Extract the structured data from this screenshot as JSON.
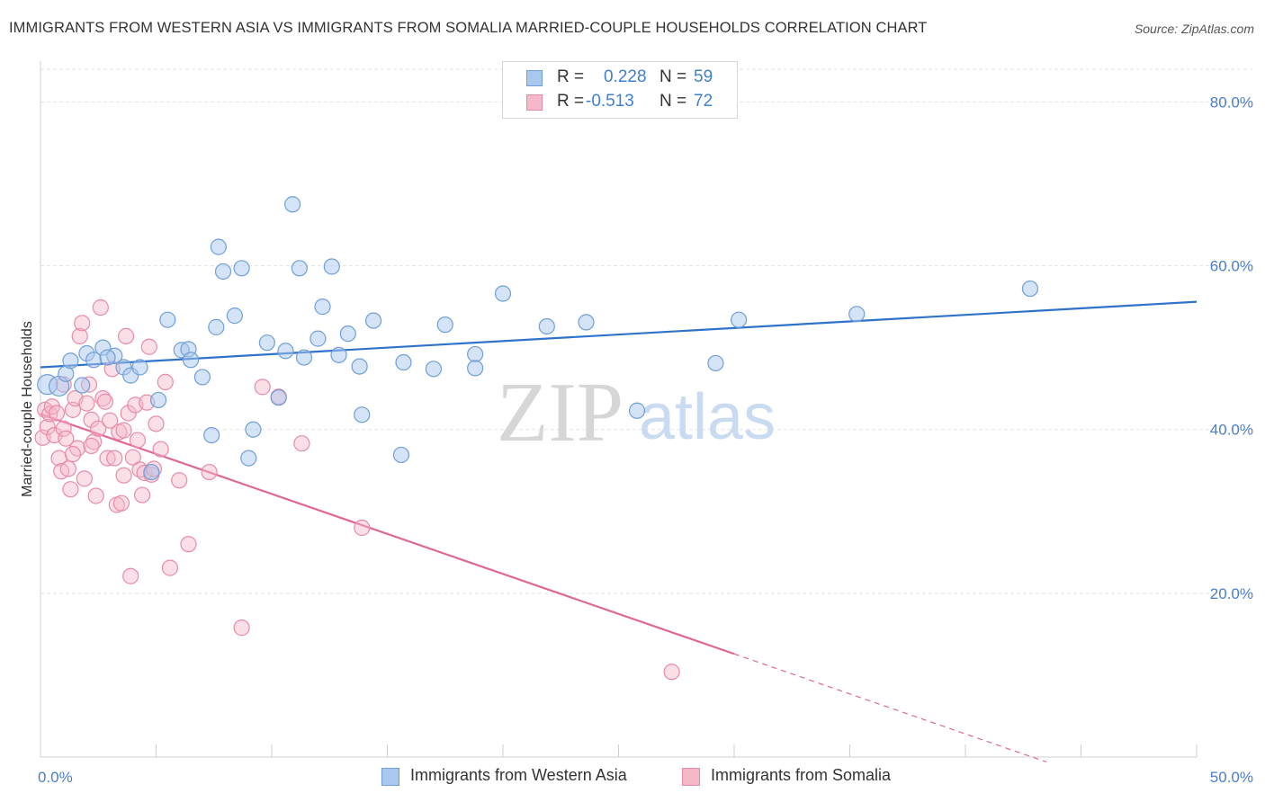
{
  "header": {
    "title": "IMMIGRANTS FROM WESTERN ASIA VS IMMIGRANTS FROM SOMALIA MARRIED-COUPLE HOUSEHOLDS CORRELATION CHART",
    "source": "Source: ZipAtlas.com"
  },
  "watermark": {
    "zip": "ZIP",
    "atlas": "atlas"
  },
  "legend": {
    "rows": [
      {
        "r_label": "R =",
        "r_value": "0.228",
        "n_label": "N =",
        "n_value": "59"
      },
      {
        "r_label": "R =",
        "r_value": "-0.513",
        "n_label": "N =",
        "n_value": "72"
      }
    ]
  },
  "bottom_legend": {
    "series1": "Immigrants from Western Asia",
    "series2": "Immigrants from Somalia"
  },
  "colors": {
    "blue_fill": "#aac8ee",
    "blue_stroke": "#6f9fd8",
    "blue_line": "#2f72c9",
    "pink_fill": "#f5b8c8",
    "pink_stroke": "#e98aa7",
    "pink_line": "#e06792",
    "grid": "#e3e3e3",
    "tick_text": "#4a7ec8"
  },
  "chart_data": {
    "type": "scatter",
    "title": "IMMIGRANTS FROM WESTERN ASIA VS IMMIGRANTS FROM SOMALIA MARRIED-COUPLE HOUSEHOLDS CORRELATION CHART",
    "xlabel": "",
    "ylabel": "Married-couple Households",
    "xlim": [
      0,
      50
    ],
    "ylim": [
      0,
      84
    ],
    "x_tick_labels": [
      "0.0%",
      "50.0%"
    ],
    "y_ticks": [
      20,
      40,
      60,
      80
    ],
    "y_tick_labels": [
      "20.0%",
      "40.0%",
      "60.0%",
      "80.0%"
    ],
    "grid": true,
    "legend_position": "top-center",
    "series": [
      {
        "name": "Immigrants from Western Asia",
        "color": "#aac8ee",
        "r": 0.228,
        "n": 59,
        "trend": {
          "x": [
            0,
            50
          ],
          "y": [
            47.6,
            55.6
          ]
        },
        "points": [
          [
            0.3,
            45.5
          ],
          [
            0.8,
            45.3
          ],
          [
            1.1,
            46.8
          ],
          [
            1.3,
            48.4
          ],
          [
            1.8,
            45.4
          ],
          [
            2.0,
            49.3
          ],
          [
            2.3,
            48.5
          ],
          [
            2.7,
            50.0
          ],
          [
            3.2,
            49.0
          ],
          [
            2.9,
            48.8
          ],
          [
            3.6,
            47.6
          ],
          [
            3.9,
            46.6
          ],
          [
            4.3,
            47.6
          ],
          [
            4.8,
            34.8
          ],
          [
            5.1,
            43.6
          ],
          [
            5.5,
            53.4
          ],
          [
            6.1,
            49.7
          ],
          [
            6.4,
            49.8
          ],
          [
            6.5,
            48.5
          ],
          [
            7.0,
            46.4
          ],
          [
            7.4,
            39.3
          ],
          [
            7.7,
            62.3
          ],
          [
            7.6,
            52.5
          ],
          [
            7.9,
            59.3
          ],
          [
            8.4,
            53.9
          ],
          [
            8.7,
            59.7
          ],
          [
            9.0,
            36.5
          ],
          [
            9.2,
            40.0
          ],
          [
            9.8,
            50.6
          ],
          [
            10.3,
            43.9
          ],
          [
            10.6,
            49.6
          ],
          [
            10.9,
            67.5
          ],
          [
            11.2,
            59.7
          ],
          [
            11.4,
            48.8
          ],
          [
            12.0,
            51.1
          ],
          [
            12.2,
            55.0
          ],
          [
            12.6,
            59.9
          ],
          [
            12.9,
            49.1
          ],
          [
            13.3,
            51.7
          ],
          [
            13.8,
            47.7
          ],
          [
            13.9,
            41.8
          ],
          [
            14.4,
            53.3
          ],
          [
            15.7,
            48.2
          ],
          [
            15.6,
            36.9
          ],
          [
            17.0,
            47.4
          ],
          [
            17.5,
            52.8
          ],
          [
            18.8,
            49.2
          ],
          [
            18.8,
            47.5
          ],
          [
            20.0,
            56.6
          ],
          [
            21.9,
            52.6
          ],
          [
            23.6,
            53.1
          ],
          [
            25.8,
            42.3
          ],
          [
            29.2,
            48.1
          ],
          [
            30.2,
            53.4
          ],
          [
            35.3,
            54.1
          ],
          [
            42.8,
            57.2
          ]
        ]
      },
      {
        "name": "Immigrants from Somalia",
        "color": "#f5b8c8",
        "r": -0.513,
        "n": 72,
        "trend": {
          "x": [
            0,
            30
          ],
          "y": [
            41.9,
            12.6
          ]
        },
        "trend_dashed": {
          "x": [
            30,
            43.5
          ],
          "y": [
            12.6,
            -0.6
          ]
        },
        "points": [
          [
            0.1,
            39.0
          ],
          [
            0.2,
            42.4
          ],
          [
            0.3,
            40.3
          ],
          [
            0.4,
            41.9
          ],
          [
            0.5,
            42.8
          ],
          [
            0.6,
            39.3
          ],
          [
            0.7,
            42.0
          ],
          [
            0.8,
            36.5
          ],
          [
            0.9,
            34.9
          ],
          [
            1.0,
            40.1
          ],
          [
            1.1,
            38.9
          ],
          [
            1.2,
            35.2
          ],
          [
            1.3,
            32.7
          ],
          [
            1.4,
            42.4
          ],
          [
            1.5,
            43.8
          ],
          [
            1.6,
            37.7
          ],
          [
            1.7,
            51.4
          ],
          [
            1.8,
            53.0
          ],
          [
            1.9,
            34.0
          ],
          [
            2.0,
            43.2
          ],
          [
            2.1,
            45.5
          ],
          [
            2.2,
            41.2
          ],
          [
            2.3,
            38.5
          ],
          [
            2.4,
            31.9
          ],
          [
            2.5,
            40.1
          ],
          [
            2.6,
            54.9
          ],
          [
            2.7,
            43.8
          ],
          [
            2.8,
            43.4
          ],
          [
            2.9,
            36.5
          ],
          [
            3.0,
            41.1
          ],
          [
            3.1,
            47.4
          ],
          [
            3.2,
            36.5
          ],
          [
            3.3,
            30.8
          ],
          [
            3.4,
            39.7
          ],
          [
            3.5,
            31.0
          ],
          [
            3.6,
            34.4
          ],
          [
            3.7,
            51.4
          ],
          [
            3.8,
            42.0
          ],
          [
            3.9,
            22.1
          ],
          [
            4.0,
            36.6
          ],
          [
            4.1,
            43.0
          ],
          [
            4.2,
            38.7
          ],
          [
            4.3,
            35.1
          ],
          [
            4.4,
            32.0
          ],
          [
            4.5,
            34.7
          ],
          [
            4.6,
            43.3
          ],
          [
            4.7,
            50.1
          ],
          [
            4.8,
            34.5
          ],
          [
            5.0,
            40.7
          ],
          [
            5.2,
            37.6
          ],
          [
            5.4,
            45.8
          ],
          [
            5.6,
            23.1
          ],
          [
            6.0,
            33.8
          ],
          [
            6.4,
            26.0
          ],
          [
            7.3,
            34.8
          ],
          [
            8.7,
            15.8
          ],
          [
            9.6,
            45.2
          ],
          [
            10.3,
            44.0
          ],
          [
            11.3,
            38.3
          ],
          [
            13.9,
            28.0
          ],
          [
            27.3,
            10.4
          ],
          [
            2.2,
            38.0
          ],
          [
            3.6,
            39.9
          ],
          [
            1.0,
            45.5
          ],
          [
            4.9,
            35.2
          ],
          [
            1.4,
            37.0
          ]
        ]
      }
    ]
  }
}
